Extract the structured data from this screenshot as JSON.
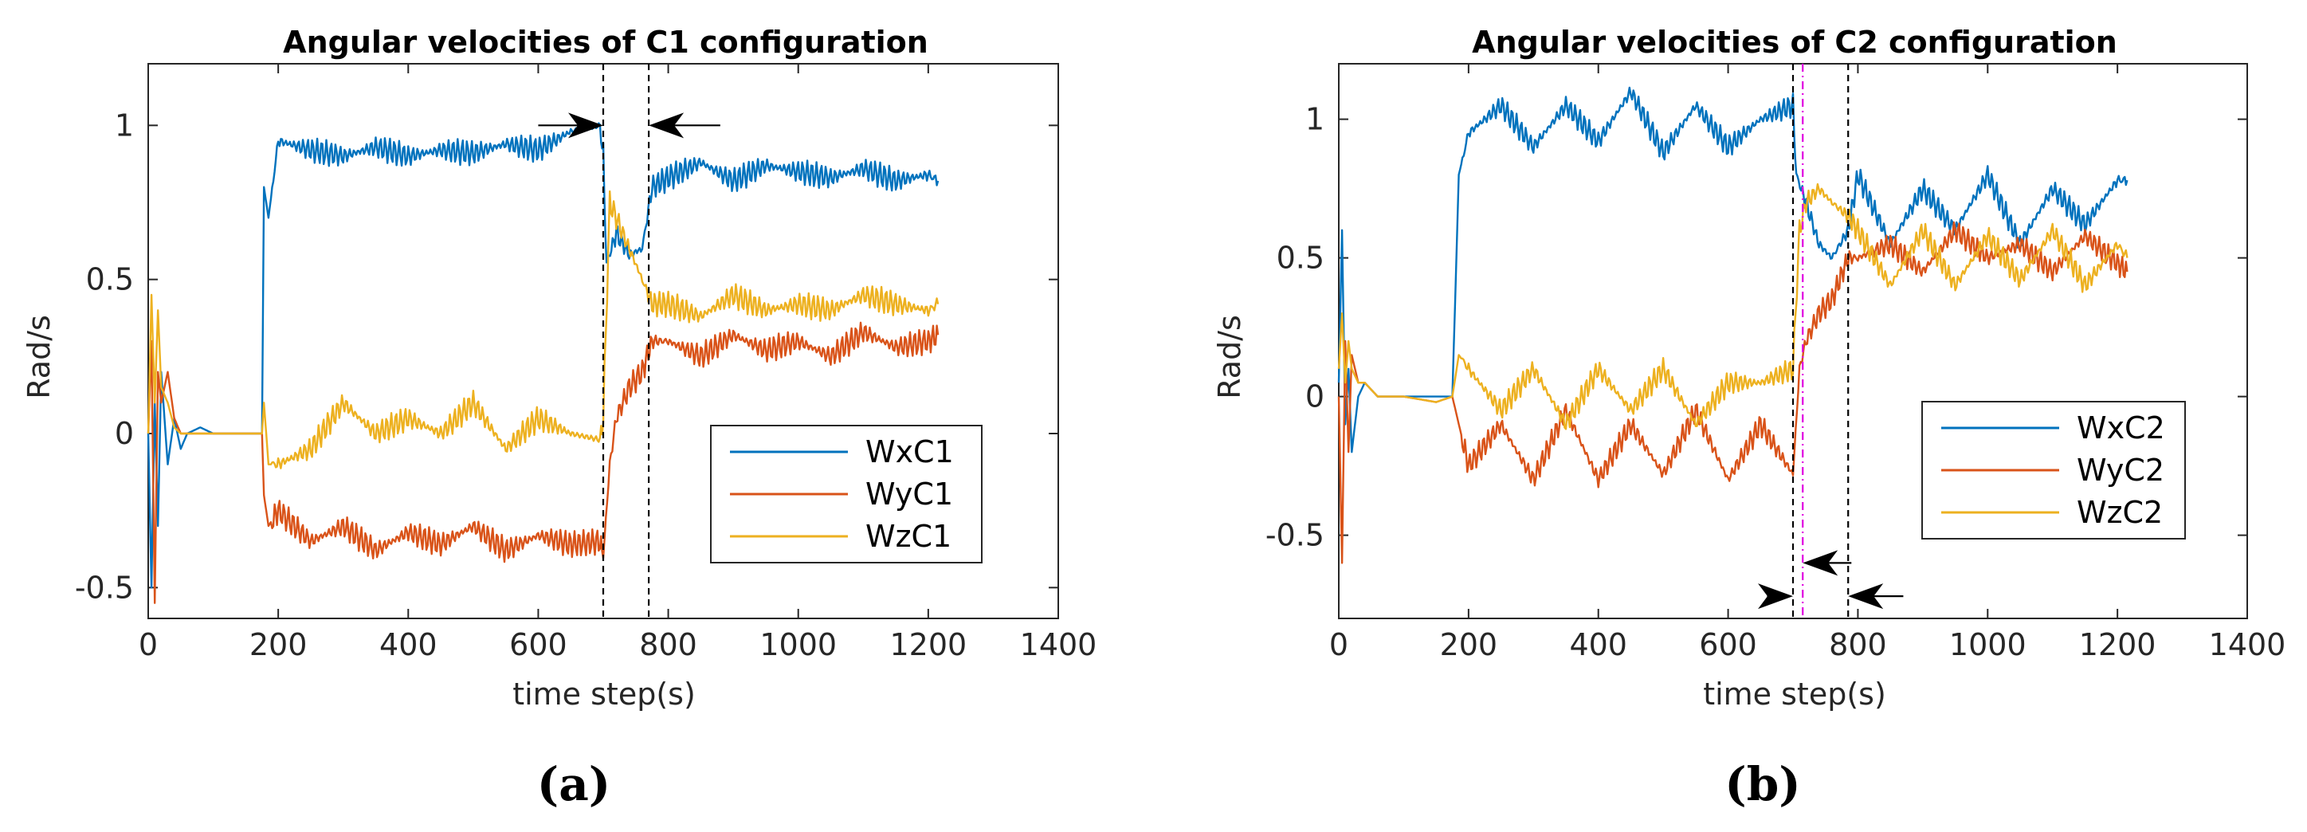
{
  "colors": {
    "WX": "#0072BD",
    "WY": "#D95319",
    "WZ": "#EDB120",
    "axis": "#262626",
    "marker_line": "#000000",
    "magenta": "#E000E0"
  },
  "chart_data": [
    {
      "id": "a",
      "type": "line",
      "title": "Angular velocities of C1 configuration",
      "subcaption": "(a)",
      "xlabel": "time step(s)",
      "ylabel": "Rad/s",
      "xlim": [
        0,
        1400
      ],
      "ylim": [
        -0.6,
        1.2
      ],
      "xticks": [
        0,
        200,
        400,
        600,
        800,
        1000,
        1200,
        1400
      ],
      "xtick_labels": [
        "0",
        "200",
        "400",
        "600",
        "800",
        "1000",
        "1200",
        "1400"
      ],
      "yticks": [
        -0.5,
        0,
        0.5,
        1
      ],
      "ytick_labels": [
        "-0.5",
        "0",
        "0.5",
        "1"
      ],
      "legend": {
        "position": "lower-right",
        "entries": [
          "WxC1",
          "WyC1",
          "WzC1"
        ]
      },
      "series": [
        {
          "name": "WxC1",
          "color_key": "WX",
          "x": [
            0,
            5,
            10,
            15,
            20,
            30,
            40,
            50,
            60,
            80,
            100,
            120,
            150,
            175,
            178,
            185,
            200,
            250,
            300,
            350,
            400,
            450,
            500,
            550,
            600,
            650,
            695,
            700,
            705,
            720,
            740,
            760,
            775,
            800,
            850,
            900,
            950,
            1000,
            1050,
            1100,
            1150,
            1200,
            1215
          ],
          "y": [
            0.0,
            -0.5,
            0.1,
            -0.3,
            0.2,
            -0.1,
            0.05,
            -0.05,
            0.0,
            0.02,
            0.0,
            0.0,
            0.0,
            0.0,
            0.8,
            0.7,
            0.95,
            0.92,
            0.9,
            0.93,
            0.9,
            0.92,
            0.91,
            0.94,
            0.92,
            0.98,
            1.0,
            0.9,
            0.55,
            0.65,
            0.58,
            0.6,
            0.8,
            0.83,
            0.88,
            0.82,
            0.87,
            0.85,
            0.83,
            0.86,
            0.82,
            0.84,
            0.82
          ]
        },
        {
          "name": "WyC1",
          "color_key": "WY",
          "x": [
            0,
            5,
            10,
            15,
            20,
            30,
            40,
            50,
            60,
            80,
            100,
            120,
            150,
            175,
            178,
            185,
            200,
            250,
            300,
            350,
            400,
            450,
            500,
            550,
            600,
            650,
            695,
            700,
            710,
            720,
            740,
            760,
            775,
            800,
            850,
            900,
            950,
            1000,
            1050,
            1100,
            1150,
            1200,
            1215
          ],
          "y": [
            0.0,
            0.3,
            -0.55,
            0.2,
            0.1,
            0.2,
            0.05,
            0.0,
            0.0,
            0.0,
            0.0,
            0.0,
            0.0,
            0.0,
            -0.2,
            -0.3,
            -0.25,
            -0.35,
            -0.3,
            -0.38,
            -0.32,
            -0.36,
            -0.3,
            -0.38,
            -0.33,
            -0.36,
            -0.35,
            -0.4,
            -0.1,
            0.05,
            0.15,
            0.2,
            0.3,
            0.3,
            0.25,
            0.32,
            0.27,
            0.3,
            0.25,
            0.33,
            0.28,
            0.3,
            0.32
          ]
        },
        {
          "name": "WzC1",
          "color_key": "WZ",
          "x": [
            0,
            5,
            10,
            15,
            20,
            30,
            40,
            50,
            60,
            80,
            100,
            120,
            150,
            175,
            178,
            185,
            200,
            250,
            300,
            350,
            400,
            450,
            500,
            550,
            600,
            650,
            695,
            700,
            710,
            720,
            740,
            760,
            775,
            800,
            850,
            900,
            950,
            1000,
            1050,
            1100,
            1150,
            1200,
            1215
          ],
          "y": [
            0.0,
            0.45,
            0.1,
            0.4,
            0.15,
            0.1,
            0.02,
            0.0,
            0.0,
            0.0,
            0.0,
            0.0,
            0.0,
            0.0,
            0.1,
            -0.1,
            -0.1,
            -0.05,
            0.1,
            0.0,
            0.05,
            0.0,
            0.1,
            -0.05,
            0.05,
            0.0,
            -0.02,
            0.05,
            0.75,
            0.7,
            0.6,
            0.5,
            0.42,
            0.42,
            0.38,
            0.45,
            0.4,
            0.42,
            0.4,
            0.45,
            0.42,
            0.4,
            0.42
          ]
        }
      ],
      "vlines": [
        {
          "x": 700,
          "style": "dashed",
          "color_key": "marker_line"
        },
        {
          "x": 770,
          "style": "dashed",
          "color_key": "marker_line"
        }
      ],
      "arrows": [
        {
          "y": 1.0,
          "from_x": 600,
          "to_x": 700
        },
        {
          "y": 1.0,
          "from_x": 880,
          "to_x": 770
        }
      ]
    },
    {
      "id": "b",
      "type": "line",
      "title": "Angular velocities of C2 configuration",
      "subcaption": "(b)",
      "xlabel": "time step(s)",
      "ylabel": "Rad/s",
      "xlim": [
        0,
        1400
      ],
      "ylim": [
        -0.8,
        1.2
      ],
      "xticks": [
        0,
        200,
        400,
        600,
        800,
        1000,
        1200,
        1400
      ],
      "xtick_labels": [
        "0",
        "200",
        "400",
        "600",
        "800",
        "1000",
        "1200",
        "1400"
      ],
      "yticks": [
        -0.5,
        0,
        0.5,
        1
      ],
      "ytick_labels": [
        "-0.5",
        "0",
        "0.5",
        "1"
      ],
      "legend": {
        "position": "right",
        "entries": [
          "WxC2",
          "WyC2",
          "WzC2"
        ]
      },
      "series": [
        {
          "name": "WxC2",
          "color_key": "WX",
          "x": [
            0,
            5,
            10,
            15,
            20,
            30,
            40,
            60,
            100,
            150,
            175,
            185,
            200,
            250,
            300,
            350,
            400,
            450,
            500,
            550,
            600,
            650,
            700,
            705,
            720,
            740,
            760,
            785,
            800,
            850,
            900,
            950,
            1000,
            1050,
            1100,
            1150,
            1200,
            1215
          ],
          "y": [
            0.05,
            0.6,
            -0.1,
            0.1,
            -0.2,
            0.0,
            0.05,
            0.0,
            0.0,
            0.0,
            0.0,
            0.8,
            0.95,
            1.05,
            0.9,
            1.05,
            0.92,
            1.1,
            0.88,
            1.05,
            0.9,
            1.0,
            1.05,
            0.8,
            0.7,
            0.55,
            0.5,
            0.6,
            0.8,
            0.55,
            0.75,
            0.6,
            0.8,
            0.55,
            0.75,
            0.62,
            0.78,
            0.78
          ]
        },
        {
          "name": "WyC2",
          "color_key": "WY",
          "x": [
            0,
            5,
            10,
            15,
            20,
            30,
            40,
            60,
            100,
            150,
            175,
            185,
            200,
            250,
            300,
            350,
            400,
            450,
            500,
            550,
            600,
            650,
            700,
            710,
            720,
            740,
            760,
            785,
            800,
            850,
            900,
            950,
            1000,
            1050,
            1100,
            1150,
            1200,
            1215
          ],
          "y": [
            0.0,
            -0.6,
            0.2,
            -0.2,
            0.15,
            0.05,
            0.05,
            0.0,
            0.0,
            -0.02,
            0.0,
            -0.1,
            -0.25,
            -0.1,
            -0.3,
            -0.05,
            -0.3,
            -0.1,
            -0.28,
            -0.05,
            -0.3,
            -0.1,
            -0.28,
            0.1,
            0.2,
            0.3,
            0.35,
            0.5,
            0.5,
            0.55,
            0.45,
            0.6,
            0.5,
            0.55,
            0.45,
            0.58,
            0.48,
            0.45
          ]
        },
        {
          "name": "WzC2",
          "color_key": "WZ",
          "x": [
            0,
            5,
            10,
            15,
            20,
            30,
            40,
            60,
            100,
            150,
            175,
            185,
            200,
            250,
            300,
            350,
            400,
            450,
            500,
            550,
            600,
            650,
            700,
            710,
            720,
            740,
            760,
            785,
            800,
            850,
            900,
            950,
            1000,
            1050,
            1100,
            1150,
            1200,
            1215
          ],
          "y": [
            0.1,
            0.3,
            0.05,
            0.2,
            0.1,
            0.05,
            0.05,
            0.0,
            0.0,
            -0.02,
            0.0,
            0.15,
            0.1,
            -0.05,
            0.1,
            -0.1,
            0.1,
            -0.05,
            0.1,
            -0.1,
            0.05,
            0.05,
            0.1,
            0.6,
            0.7,
            0.75,
            0.7,
            0.65,
            0.6,
            0.4,
            0.6,
            0.4,
            0.58,
            0.42,
            0.6,
            0.4,
            0.55,
            0.5
          ]
        }
      ],
      "vlines": [
        {
          "x": 700,
          "style": "dashed",
          "color_key": "marker_line"
        },
        {
          "x": 715,
          "style": "dashdot",
          "color_key": "magenta"
        },
        {
          "x": 785,
          "style": "dashed",
          "color_key": "marker_line"
        }
      ],
      "arrows": [
        {
          "y": -0.72,
          "from_x": 660,
          "to_x": 700
        },
        {
          "y": -0.6,
          "from_x": 790,
          "to_x": 715
        },
        {
          "y": -0.72,
          "from_x": 870,
          "to_x": 785
        }
      ]
    }
  ]
}
